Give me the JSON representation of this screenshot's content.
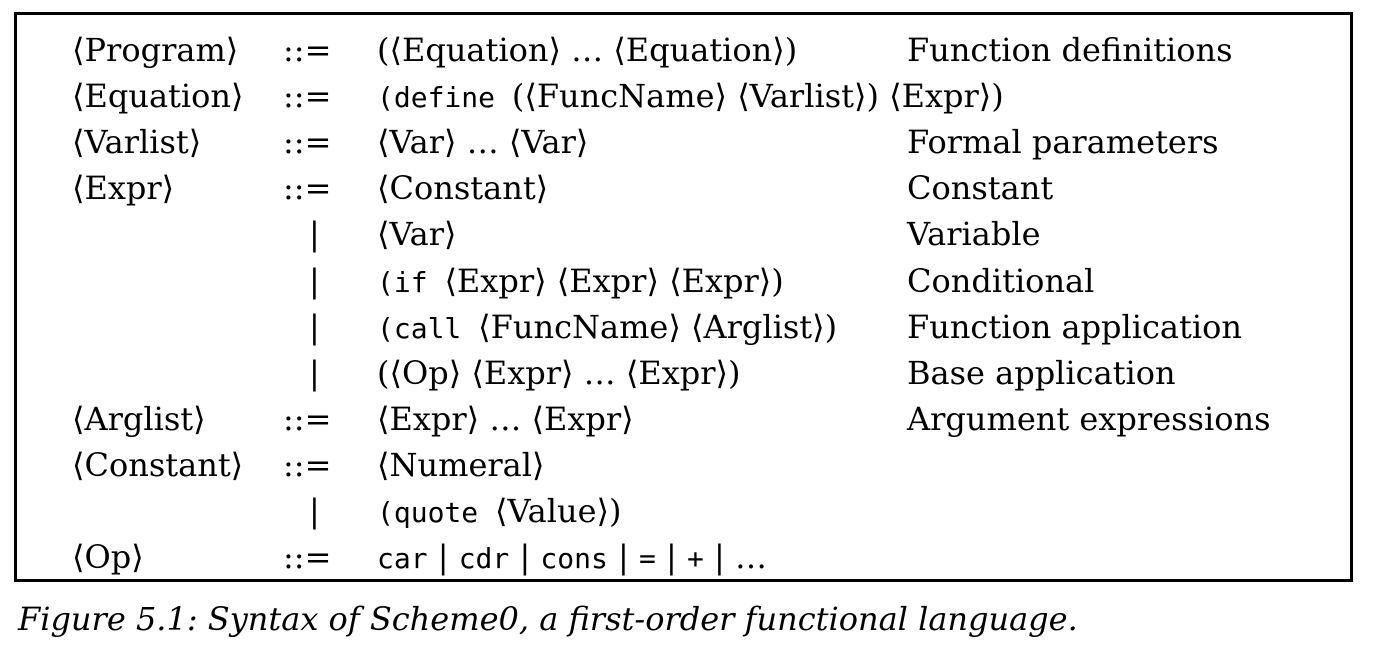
{
  "grammar": {
    "rows": [
      {
        "nonterminal": "⟨Program⟩",
        "def": "::=",
        "rhs": [
          {
            "t": "text",
            "v": "(⟨Equation⟩ … ⟨Equation⟩)"
          }
        ],
        "comment": "Function definitions"
      },
      {
        "nonterminal": "⟨Equation⟩",
        "def": "::=",
        "rhs": [
          {
            "t": "code",
            "v": "(define "
          },
          {
            "t": "text",
            "v": "(⟨FuncName⟩ ⟨Varlist⟩) ⟨Expr⟩)"
          }
        ],
        "comment": ""
      },
      {
        "nonterminal": "⟨Varlist⟩",
        "def": "::=",
        "rhs": [
          {
            "t": "text",
            "v": "⟨Var⟩ … ⟨Var⟩"
          }
        ],
        "comment": "Formal parameters"
      },
      {
        "nonterminal": "⟨Expr⟩",
        "def": "::=",
        "rhs": [
          {
            "t": "text",
            "v": "⟨Constant⟩"
          }
        ],
        "comment": "Constant"
      },
      {
        "nonterminal": "",
        "def": "|",
        "rhs": [
          {
            "t": "text",
            "v": "⟨Var⟩"
          }
        ],
        "comment": "Variable"
      },
      {
        "nonterminal": "",
        "def": "|",
        "rhs": [
          {
            "t": "code",
            "v": "(if "
          },
          {
            "t": "text",
            "v": "⟨Expr⟩ ⟨Expr⟩ ⟨Expr⟩)"
          }
        ],
        "comment": "Conditional"
      },
      {
        "nonterminal": "",
        "def": "|",
        "rhs": [
          {
            "t": "code",
            "v": "(call "
          },
          {
            "t": "text",
            "v": "⟨FuncName⟩ ⟨Arglist⟩)"
          }
        ],
        "comment": "Function application"
      },
      {
        "nonterminal": "",
        "def": "|",
        "rhs": [
          {
            "t": "text",
            "v": "(⟨Op⟩ ⟨Expr⟩ … ⟨Expr⟩)"
          }
        ],
        "comment": "Base application"
      },
      {
        "nonterminal": "⟨Arglist⟩",
        "def": "::=",
        "rhs": [
          {
            "t": "text",
            "v": "⟨Expr⟩ … ⟨Expr⟩"
          }
        ],
        "comment": "Argument expressions"
      },
      {
        "nonterminal": "⟨Constant⟩",
        "def": "::=",
        "rhs": [
          {
            "t": "text",
            "v": "⟨Numeral⟩"
          }
        ],
        "comment": ""
      },
      {
        "nonterminal": "",
        "def": "|",
        "rhs": [
          {
            "t": "code",
            "v": "(quote "
          },
          {
            "t": "text",
            "v": "⟨Value⟩)"
          }
        ],
        "comment": ""
      },
      {
        "nonterminal": "⟨Op⟩",
        "def": "::=",
        "rhs": [
          {
            "t": "code",
            "v": "car"
          },
          {
            "t": "text",
            "v": " | "
          },
          {
            "t": "code",
            "v": "cdr"
          },
          {
            "t": "text",
            "v": " | "
          },
          {
            "t": "code",
            "v": "cons"
          },
          {
            "t": "text",
            "v": " | "
          },
          {
            "t": "code",
            "v": "="
          },
          {
            "t": "text",
            "v": " | "
          },
          {
            "t": "code",
            "v": "+"
          },
          {
            "t": "text",
            "v": " | …"
          }
        ],
        "comment": ""
      }
    ]
  },
  "caption": "Figure 5.1: Syntax of Scheme0, a first-order functional language."
}
